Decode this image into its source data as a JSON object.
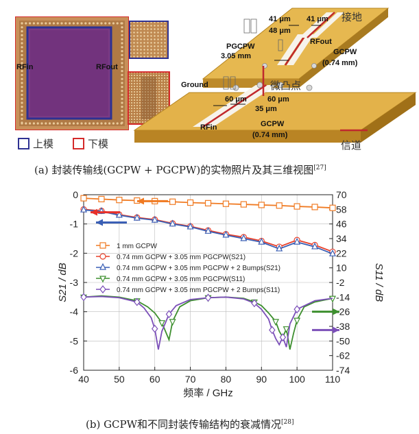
{
  "photo": {
    "rfin": "RFin",
    "rfout": "RFout",
    "legend_upper": "上模",
    "legend_lower": "下模",
    "upper_color": "#2e3192",
    "lower_color": "#d42a2a"
  },
  "view3d": {
    "ground": "Ground",
    "rfin": "RFin",
    "rfout": "RFout",
    "pgcpw": "PGCPW",
    "pgcpw_len": "3.05 mm",
    "gcpw_top": "GCPW",
    "gcpw_top_len": "(0.74 mm)",
    "gcpw_bot": "GCPW",
    "gcpw_bot_len": "(0.74 mm)",
    "dim_41a": "41 μm",
    "dim_41b": "41 μm",
    "dim_48": "48 μm",
    "dim_60a": "60 μm",
    "dim_60b": "60 μm",
    "dim_35": "35 μm",
    "ground_cn": "接地",
    "bump_cn": "微凸点",
    "channel_cn": "信道",
    "channel_color": "#c0282d",
    "board_color": "#d9a63a"
  },
  "caption_a": {
    "text": "(a)  封装传输线(GCPW + PGCPW)的实物照片及其三维视图",
    "ref": "[27]"
  },
  "caption_b": {
    "text": "(b)  GCPW和不同封装传输结构的衰减情况",
    "ref": "[28]"
  },
  "chart_data": {
    "type": "line",
    "xlabel": "频率 / GHz",
    "ylabel_left": "S21 / dB",
    "ylabel_right": "S11 / dB",
    "xlim": [
      40,
      110
    ],
    "ylim_left": [
      -6,
      0
    ],
    "ylim_right": [
      -74,
      70
    ],
    "xticks": [
      40,
      50,
      60,
      70,
      80,
      90,
      100,
      110
    ],
    "yticks_left": [
      0,
      -1,
      -2,
      -3,
      -4,
      -5,
      -6
    ],
    "yticks_right": [
      70,
      58,
      46,
      34,
      22,
      10,
      -2,
      -14,
      -26,
      -38,
      -50,
      -62,
      -74
    ],
    "legend": [
      {
        "label": "1 mm GCPW",
        "color": "#f07a22",
        "marker": "square"
      },
      {
        "label": "0.74 mm GCPW + 3.05 mm PGCPW(S21)",
        "color": "#e8402a",
        "marker": "circle"
      },
      {
        "label": "0.74 mm GCPW + 3.05 mm PGCPW + 2 Bumps(S21)",
        "color": "#3a5fb5",
        "marker": "triangle"
      },
      {
        "label": "0.74 mm GCPW + 3.05 mm PGCPW(S11)",
        "color": "#3d8f2e",
        "marker": "triangle-down"
      },
      {
        "label": "0.74 mm GCPW + 3.05 mm PGCPW + 2 Bumps(S11)",
        "color": "#7b4fb8",
        "marker": "diamond"
      }
    ],
    "series": [
      {
        "name": "1 mm GCPW",
        "axis": "left",
        "x": [
          40,
          45,
          50,
          55,
          60,
          65,
          70,
          75,
          80,
          85,
          90,
          95,
          100,
          105,
          110
        ],
        "y": [
          -0.12,
          -0.15,
          -0.18,
          -0.2,
          -0.22,
          -0.24,
          -0.27,
          -0.29,
          -0.31,
          -0.33,
          -0.35,
          -0.37,
          -0.4,
          -0.42,
          -0.45
        ]
      },
      {
        "name": "0.74 mm GCPW + 3.05 mm PGCPW(S21)",
        "axis": "left",
        "x": [
          40,
          45,
          50,
          55,
          60,
          65,
          70,
          75,
          80,
          85,
          90,
          95,
          100,
          105,
          110
        ],
        "y": [
          -0.5,
          -0.55,
          -0.68,
          -0.78,
          -0.85,
          -0.98,
          -1.08,
          -1.22,
          -1.35,
          -1.45,
          -1.58,
          -1.78,
          -1.55,
          -1.72,
          -1.95
        ]
      },
      {
        "name": "0.74 mm GCPW + 3.05 mm PGCPW + 2 Bumps(S21)",
        "axis": "left",
        "x": [
          40,
          45,
          50,
          55,
          60,
          65,
          70,
          75,
          80,
          85,
          90,
          95,
          100,
          105,
          110
        ],
        "y": [
          -0.52,
          -0.57,
          -0.7,
          -0.8,
          -0.87,
          -1.0,
          -1.1,
          -1.25,
          -1.38,
          -1.5,
          -1.62,
          -1.85,
          -1.62,
          -1.78,
          -2.02
        ]
      },
      {
        "name": "0.74 mm GCPW + 3.05 mm PGCPW(S11)",
        "axis": "right",
        "x": [
          40,
          45,
          50,
          55,
          58,
          60,
          62,
          63,
          64,
          65,
          67,
          70,
          75,
          80,
          85,
          88,
          90,
          92,
          94,
          95,
          96,
          97,
          98,
          99,
          100,
          102,
          105,
          110
        ],
        "y": [
          -14,
          -13,
          -14,
          -17,
          -22,
          -27,
          -35,
          -42,
          -49,
          -34,
          -22,
          -17,
          -14.5,
          -14,
          -15,
          -18,
          -21,
          -27,
          -34,
          -42,
          -47,
          -40,
          -57,
          -44,
          -33,
          -22,
          -18,
          -15
        ]
      },
      {
        "name": "0.74 mm GCPW + 3.05 mm PGCPW + 2 Bumps(S11)",
        "axis": "right",
        "x": [
          40,
          45,
          50,
          55,
          57,
          59,
          60,
          61,
          62,
          64,
          66,
          70,
          75,
          80,
          85,
          88,
          90,
          92,
          93,
          94,
          95,
          96,
          97,
          98,
          100,
          105,
          110
        ],
        "y": [
          -14,
          -13.5,
          -14.5,
          -18,
          -23,
          -31,
          -40,
          -57,
          -42,
          -28,
          -21,
          -16,
          -14.5,
          -14,
          -15.5,
          -19,
          -24,
          -32,
          -41,
          -48,
          -53,
          -47,
          -55,
          -36,
          -24,
          -17,
          -15
        ]
      }
    ]
  }
}
